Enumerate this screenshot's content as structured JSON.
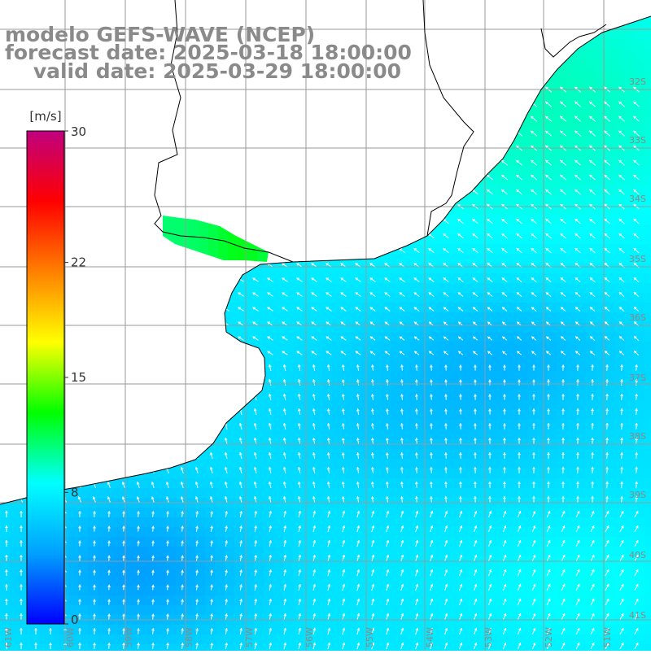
{
  "header": {
    "line1": "modelo GEFS-WAVE (NCEP)",
    "line2": "forecast date: 2025-03-18 18:00:00",
    "line3": "    valid date: 2025-03-29 18:00:00"
  },
  "colorbar": {
    "unit": "[m/s]",
    "ticks": [
      {
        "value": 30,
        "label": "30"
      },
      {
        "value": 22,
        "label": "22"
      },
      {
        "value": 15,
        "label": "15"
      },
      {
        "value": 8,
        "label": "8"
      },
      {
        "value": 0,
        "label": "0"
      }
    ],
    "range": [
      0,
      30
    ],
    "stops": [
      "#0000ff",
      "#00a0ff",
      "#00ffff",
      "#00ff00",
      "#ffff00",
      "#ff8000",
      "#ff0000",
      "#c0007f"
    ]
  },
  "axes": {
    "lon_labels": [
      "61W",
      "60W",
      "59W",
      "58W",
      "57W",
      "56W",
      "55W",
      "54W",
      "53W",
      "52W",
      "51W"
    ],
    "lat_labels": [
      "32S",
      "33S",
      "34S",
      "35S",
      "36S",
      "37S",
      "38S",
      "39S",
      "40S",
      "41S"
    ],
    "lon_range": [
      -61.5,
      -51
    ],
    "lat_range": [
      -41.5,
      -31
    ]
  },
  "colors": {
    "grid": "#9a9a9a",
    "coast": "#000000",
    "land": "#ffffff",
    "arrow": "#ffffff",
    "label": "#8a8a8a"
  }
}
